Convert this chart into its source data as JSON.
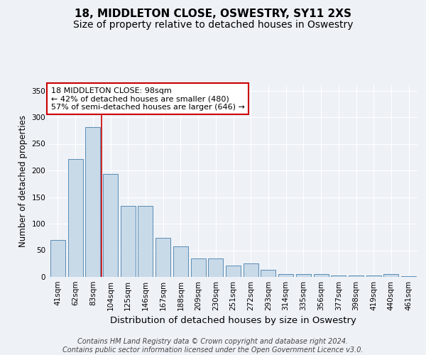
{
  "title": "18, MIDDLETON CLOSE, OSWESTRY, SY11 2XS",
  "subtitle": "Size of property relative to detached houses in Oswestry",
  "xlabel": "Distribution of detached houses by size in Oswestry",
  "ylabel": "Number of detached properties",
  "bar_labels": [
    "41sqm",
    "62sqm",
    "83sqm",
    "104sqm",
    "125sqm",
    "146sqm",
    "167sqm",
    "188sqm",
    "209sqm",
    "230sqm",
    "251sqm",
    "272sqm",
    "293sqm",
    "314sqm",
    "335sqm",
    "356sqm",
    "377sqm",
    "398sqm",
    "419sqm",
    "440sqm",
    "461sqm"
  ],
  "bar_values": [
    70,
    222,
    281,
    193,
    133,
    133,
    73,
    57,
    35,
    35,
    22,
    25,
    13,
    5,
    6,
    6,
    3,
    3,
    3,
    5,
    2
  ],
  "bar_color": "#c8d9e8",
  "bar_edgecolor": "#5a8db5",
  "background_color": "#eef2f7",
  "plot_bg_color": "#eef2f7",
  "grid_color": "#ffffff",
  "annotation_box_text": "18 MIDDLETON CLOSE: 98sqm\n← 42% of detached houses are smaller (480)\n57% of semi-detached houses are larger (646) →",
  "annotation_box_color": "#ffffff",
  "annotation_box_edgecolor": "#cc0000",
  "redline_x": 2.5,
  "ylim": [
    0,
    360
  ],
  "yticks": [
    0,
    50,
    100,
    150,
    200,
    250,
    300,
    350
  ],
  "footer_text": "Contains HM Land Registry data © Crown copyright and database right 2024.\nContains public sector information licensed under the Open Government Licence v3.0.",
  "title_fontsize": 11,
  "subtitle_fontsize": 10,
  "xlabel_fontsize": 9.5,
  "ylabel_fontsize": 8.5,
  "tick_fontsize": 7.5,
  "annotation_fontsize": 8,
  "footer_fontsize": 7
}
